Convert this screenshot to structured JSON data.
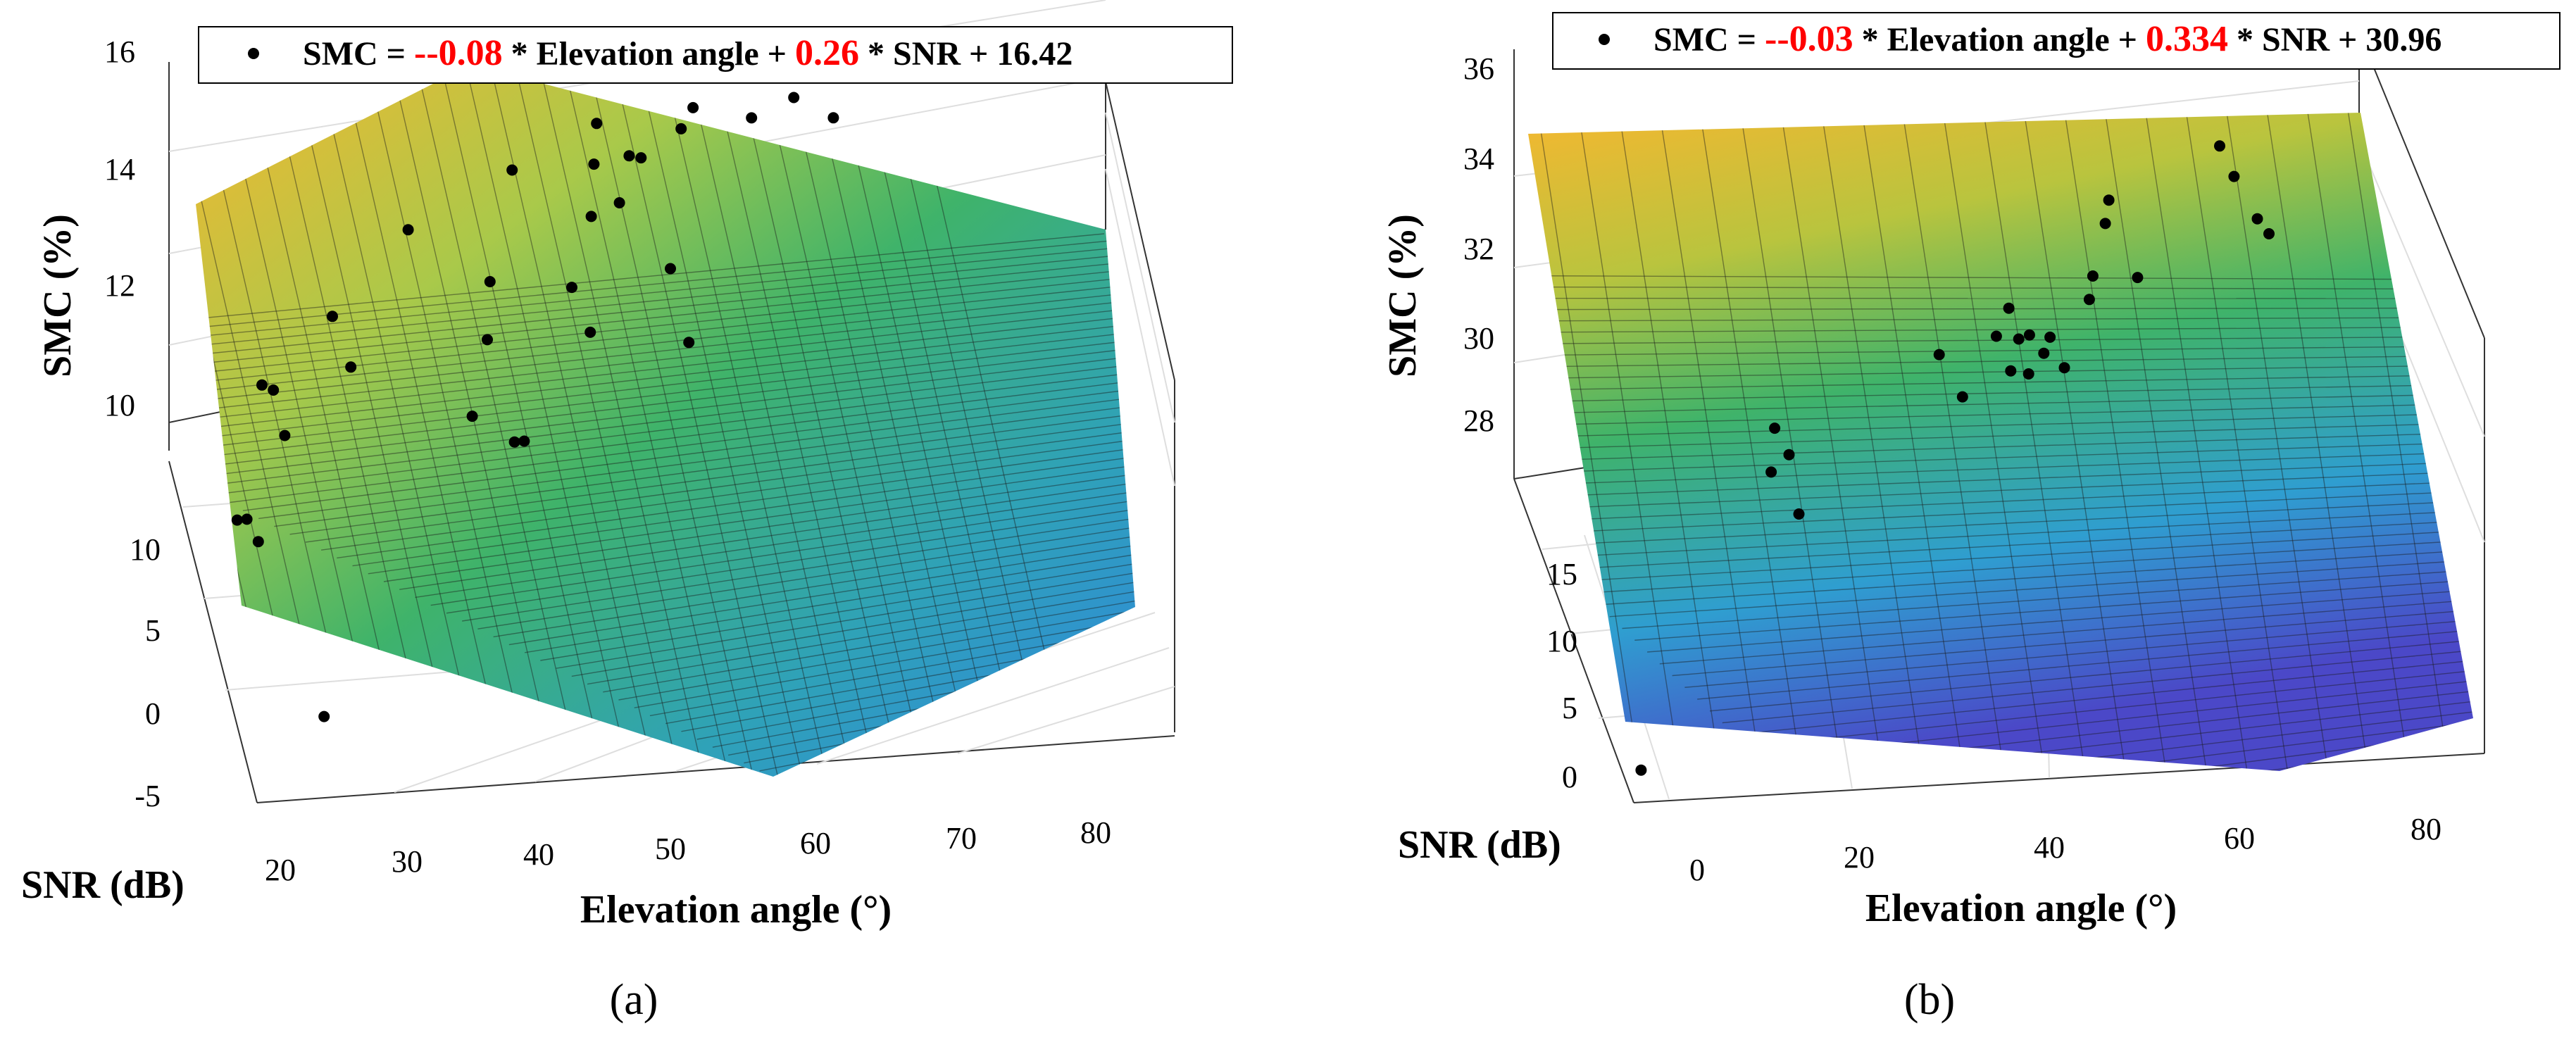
{
  "figure": {
    "panels": [
      {
        "caption": "(a)",
        "legend": {
          "prefix": "SMC = ",
          "elev_coef": "--0.08",
          "mid": " * Elevation angle + ",
          "snr_coef": "0.26",
          "suffix": " * SNR + 16.42"
        },
        "zlabel": "SMC (%)",
        "ylabel": "SNR (dB)",
        "xlabel": "Elevation angle (°)",
        "zticks": [
          "10",
          "12",
          "14",
          "16"
        ],
        "yticks": [
          "-5",
          "0",
          "5",
          "10"
        ],
        "xticks": [
          "20",
          "30",
          "40",
          "50",
          "60",
          "70",
          "80"
        ]
      },
      {
        "caption": "(b)",
        "legend": {
          "prefix": "SMC = ",
          "elev_coef": "--0.03",
          "mid": " * Elevation angle + ",
          "snr_coef": "0.334",
          "suffix": " * SNR + 30.96"
        },
        "zlabel": "SMC (%)",
        "ylabel": "SNR (dB)",
        "xlabel": "Elevation angle (°)",
        "zticks": [
          "28",
          "30",
          "32",
          "34",
          "36"
        ],
        "yticks": [
          "0",
          "5",
          "10",
          "15"
        ],
        "xticks": [
          "0",
          "20",
          "40",
          "60",
          "80"
        ]
      }
    ],
    "colors": {
      "surface_high": "#f5b730",
      "surface_mid": "#3fb36a",
      "surface_low": "#2f86e0",
      "surface_lowest": "#4b48c8",
      "coef_red": "#ff0000",
      "points": "#000000"
    }
  },
  "chart_data": [
    {
      "type": "surface+scatter",
      "title": "(a)",
      "equation": "SMC = -0.08 * Elevation angle + 0.26 * SNR + 16.42",
      "xlabel": "Elevation angle (°)",
      "ylabel": "SNR (dB)",
      "zlabel": "SMC (%)",
      "xlim": [
        20,
        85
      ],
      "ylim": [
        -6,
        14
      ],
      "zlim": [
        9,
        16
      ],
      "surface": {
        "x_range": [
          20,
          85
        ],
        "y_range": [
          -6,
          14
        ],
        "coef_elev": -0.08,
        "coef_snr": 0.26,
        "intercept": 16.42
      },
      "points": [
        {
          "x": 22,
          "y": 5,
          "z": 10.6
        },
        {
          "x": 23,
          "y": 6,
          "z": 10.3
        },
        {
          "x": 23.5,
          "y": 5,
          "z": 10.2
        },
        {
          "x": 25,
          "y": 9,
          "z": 11.7
        },
        {
          "x": 25.5,
          "y": 8,
          "z": 11.9
        },
        {
          "x": 26,
          "y": 7,
          "z": 11.4
        },
        {
          "x": 30,
          "y": 9,
          "z": 12.8
        },
        {
          "x": 31,
          "y": 8,
          "z": 12.2
        },
        {
          "x": 36,
          "y": 11,
          "z": 13.6
        },
        {
          "x": 39,
          "y": 6,
          "z": 11.8
        },
        {
          "x": 41,
          "y": 9,
          "z": 12.2
        },
        {
          "x": 41.5,
          "y": 10,
          "z": 12.9
        },
        {
          "x": 42,
          "y": 6,
          "z": 11.3
        },
        {
          "x": 43,
          "y": 7,
          "z": 11.0
        },
        {
          "x": 44,
          "y": 13,
          "z": 13.9
        },
        {
          "x": 47,
          "y": 9,
          "z": 13.0
        },
        {
          "x": 48,
          "y": 8,
          "z": 12.5
        },
        {
          "x": 49,
          "y": 11,
          "z": 13.6
        },
        {
          "x": 49.5,
          "y": 12,
          "z": 14.2
        },
        {
          "x": 50,
          "y": 13,
          "z": 14.6
        },
        {
          "x": 51,
          "y": 11,
          "z": 13.8
        },
        {
          "x": 52,
          "y": 12,
          "z": 14.3
        },
        {
          "x": 53,
          "y": 12.5,
          "z": 14.1
        },
        {
          "x": 54,
          "y": 9,
          "z": 13.2
        },
        {
          "x": 55,
          "y": 8,
          "z": 12.2
        },
        {
          "x": 56,
          "y": 13,
          "z": 14.4
        },
        {
          "x": 57,
          "y": 13.5,
          "z": 14.6
        },
        {
          "x": 61,
          "y": 13,
          "z": 14.5
        },
        {
          "x": 64,
          "y": 13,
          "z": 14.8
        },
        {
          "x": 66,
          "y": 13,
          "z": 15.2
        },
        {
          "x": 66.5,
          "y": 12,
          "z": 14.7
        },
        {
          "x": 67,
          "y": 13.5,
          "z": 15.1
        },
        {
          "x": 26,
          "y": -2,
          "z": 9.2
        }
      ]
    },
    {
      "type": "surface+scatter",
      "title": "(b)",
      "equation": "SMC = -0.03 * Elevation angle + 0.334 * SNR + 30.96",
      "xlabel": "Elevation angle (°)",
      "ylabel": "SNR (dB)",
      "zlabel": "SMC (%)",
      "xlim": [
        -5,
        90
      ],
      "ylim": [
        -2,
        20
      ],
      "zlim": [
        27,
        36
      ],
      "surface": {
        "x_range": [
          -5,
          90
        ],
        "y_range": [
          -2,
          20
        ],
        "coef_elev": -0.03,
        "coef_snr": 0.334,
        "intercept": 30.96
      },
      "points": [
        {
          "x": 18,
          "y": 8,
          "z": 31.2
        },
        {
          "x": 19,
          "y": 9,
          "z": 31.9
        },
        {
          "x": 20,
          "y": 8,
          "z": 31.6
        },
        {
          "x": 20.5,
          "y": 7,
          "z": 30.5
        },
        {
          "x": 38,
          "y": 10,
          "z": 33.1
        },
        {
          "x": 40,
          "y": 9,
          "z": 32.4
        },
        {
          "x": 45,
          "y": 11,
          "z": 33.1
        },
        {
          "x": 46,
          "y": 10,
          "z": 32.6
        },
        {
          "x": 47,
          "y": 12,
          "z": 33.4
        },
        {
          "x": 47.5,
          "y": 11,
          "z": 33.0
        },
        {
          "x": 48,
          "y": 10,
          "z": 32.5
        },
        {
          "x": 49,
          "y": 11.5,
          "z": 32.9
        },
        {
          "x": 50,
          "y": 10.5,
          "z": 32.8
        },
        {
          "x": 51,
          "y": 11,
          "z": 33.0
        },
        {
          "x": 52,
          "y": 10,
          "z": 32.6
        },
        {
          "x": 56,
          "y": 12,
          "z": 33.5
        },
        {
          "x": 57,
          "y": 13,
          "z": 33.7
        },
        {
          "x": 59,
          "y": 14,
          "z": 34.6
        },
        {
          "x": 60,
          "y": 15,
          "z": 34.8
        },
        {
          "x": 62,
          "y": 13,
          "z": 33.6
        },
        {
          "x": 73,
          "y": 16,
          "z": 35.6
        },
        {
          "x": 74,
          "y": 15,
          "z": 35.2
        },
        {
          "x": 76,
          "y": 14,
          "z": 34.5
        },
        {
          "x": 77,
          "y": 13.5,
          "z": 34.3
        },
        {
          "x": -2,
          "y": -1,
          "z": 27.4
        }
      ]
    }
  ]
}
